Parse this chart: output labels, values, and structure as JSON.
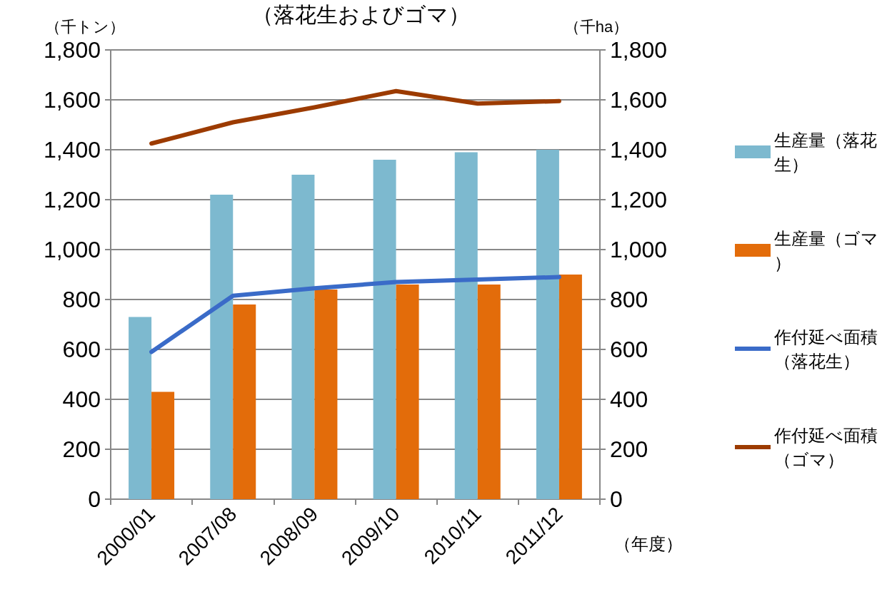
{
  "chart_data": {
    "type": "bar",
    "title": "（落花生およびゴマ）",
    "xlabel": "（年度）",
    "ylabel": "（千トン）",
    "y2label": "（千ha）",
    "categories": [
      "2000/01",
      "2007/08",
      "2008/09",
      "2009/10",
      "2010/11",
      "2011/12"
    ],
    "series": [
      {
        "name": "生産量（落花生）",
        "color": "#7db9cf",
        "values": [
          730,
          1220,
          1300,
          1360,
          1390,
          1400
        ]
      },
      {
        "name": "生産量（ゴマ）",
        "color": "#e36c0a",
        "values": [
          430,
          780,
          840,
          860,
          860,
          900
        ]
      },
      {
        "name": "作付延べ面積（落花生）",
        "type": "line",
        "axis": "y2",
        "color": "#3a6bc8",
        "values": [
          590,
          815,
          845,
          870,
          880,
          890
        ]
      },
      {
        "name": "作付延べ面積（ゴマ）",
        "type": "line",
        "axis": "y2",
        "color": "#9c3b00",
        "values": [
          1425,
          1510,
          1570,
          1635,
          1585,
          1595
        ]
      }
    ],
    "ylim": [
      0,
      1800
    ],
    "yticks": [
      0,
      200,
      400,
      600,
      800,
      {
        "value": 1000,
        "label": "1,000"
      },
      {
        "value": 1200,
        "label": "1,200"
      },
      {
        "value": 1400,
        "label": "1,400"
      },
      {
        "value": 1600,
        "label": "1,600"
      },
      {
        "value": 1800,
        "label": "1,800"
      }
    ],
    "y2lim": [
      0,
      1800
    ],
    "y2ticks": [
      0,
      200,
      400,
      600,
      800,
      {
        "value": 1000,
        "label": "1,000"
      },
      {
        "value": 1200,
        "label": "1,200"
      },
      {
        "value": 1400,
        "label": "1,400"
      },
      {
        "value": 1600,
        "label": "1,600"
      },
      {
        "value": 1800,
        "label": "1,800"
      }
    ],
    "grid": "y",
    "legend": "right",
    "marker": "none",
    "line_style": "solid"
  }
}
